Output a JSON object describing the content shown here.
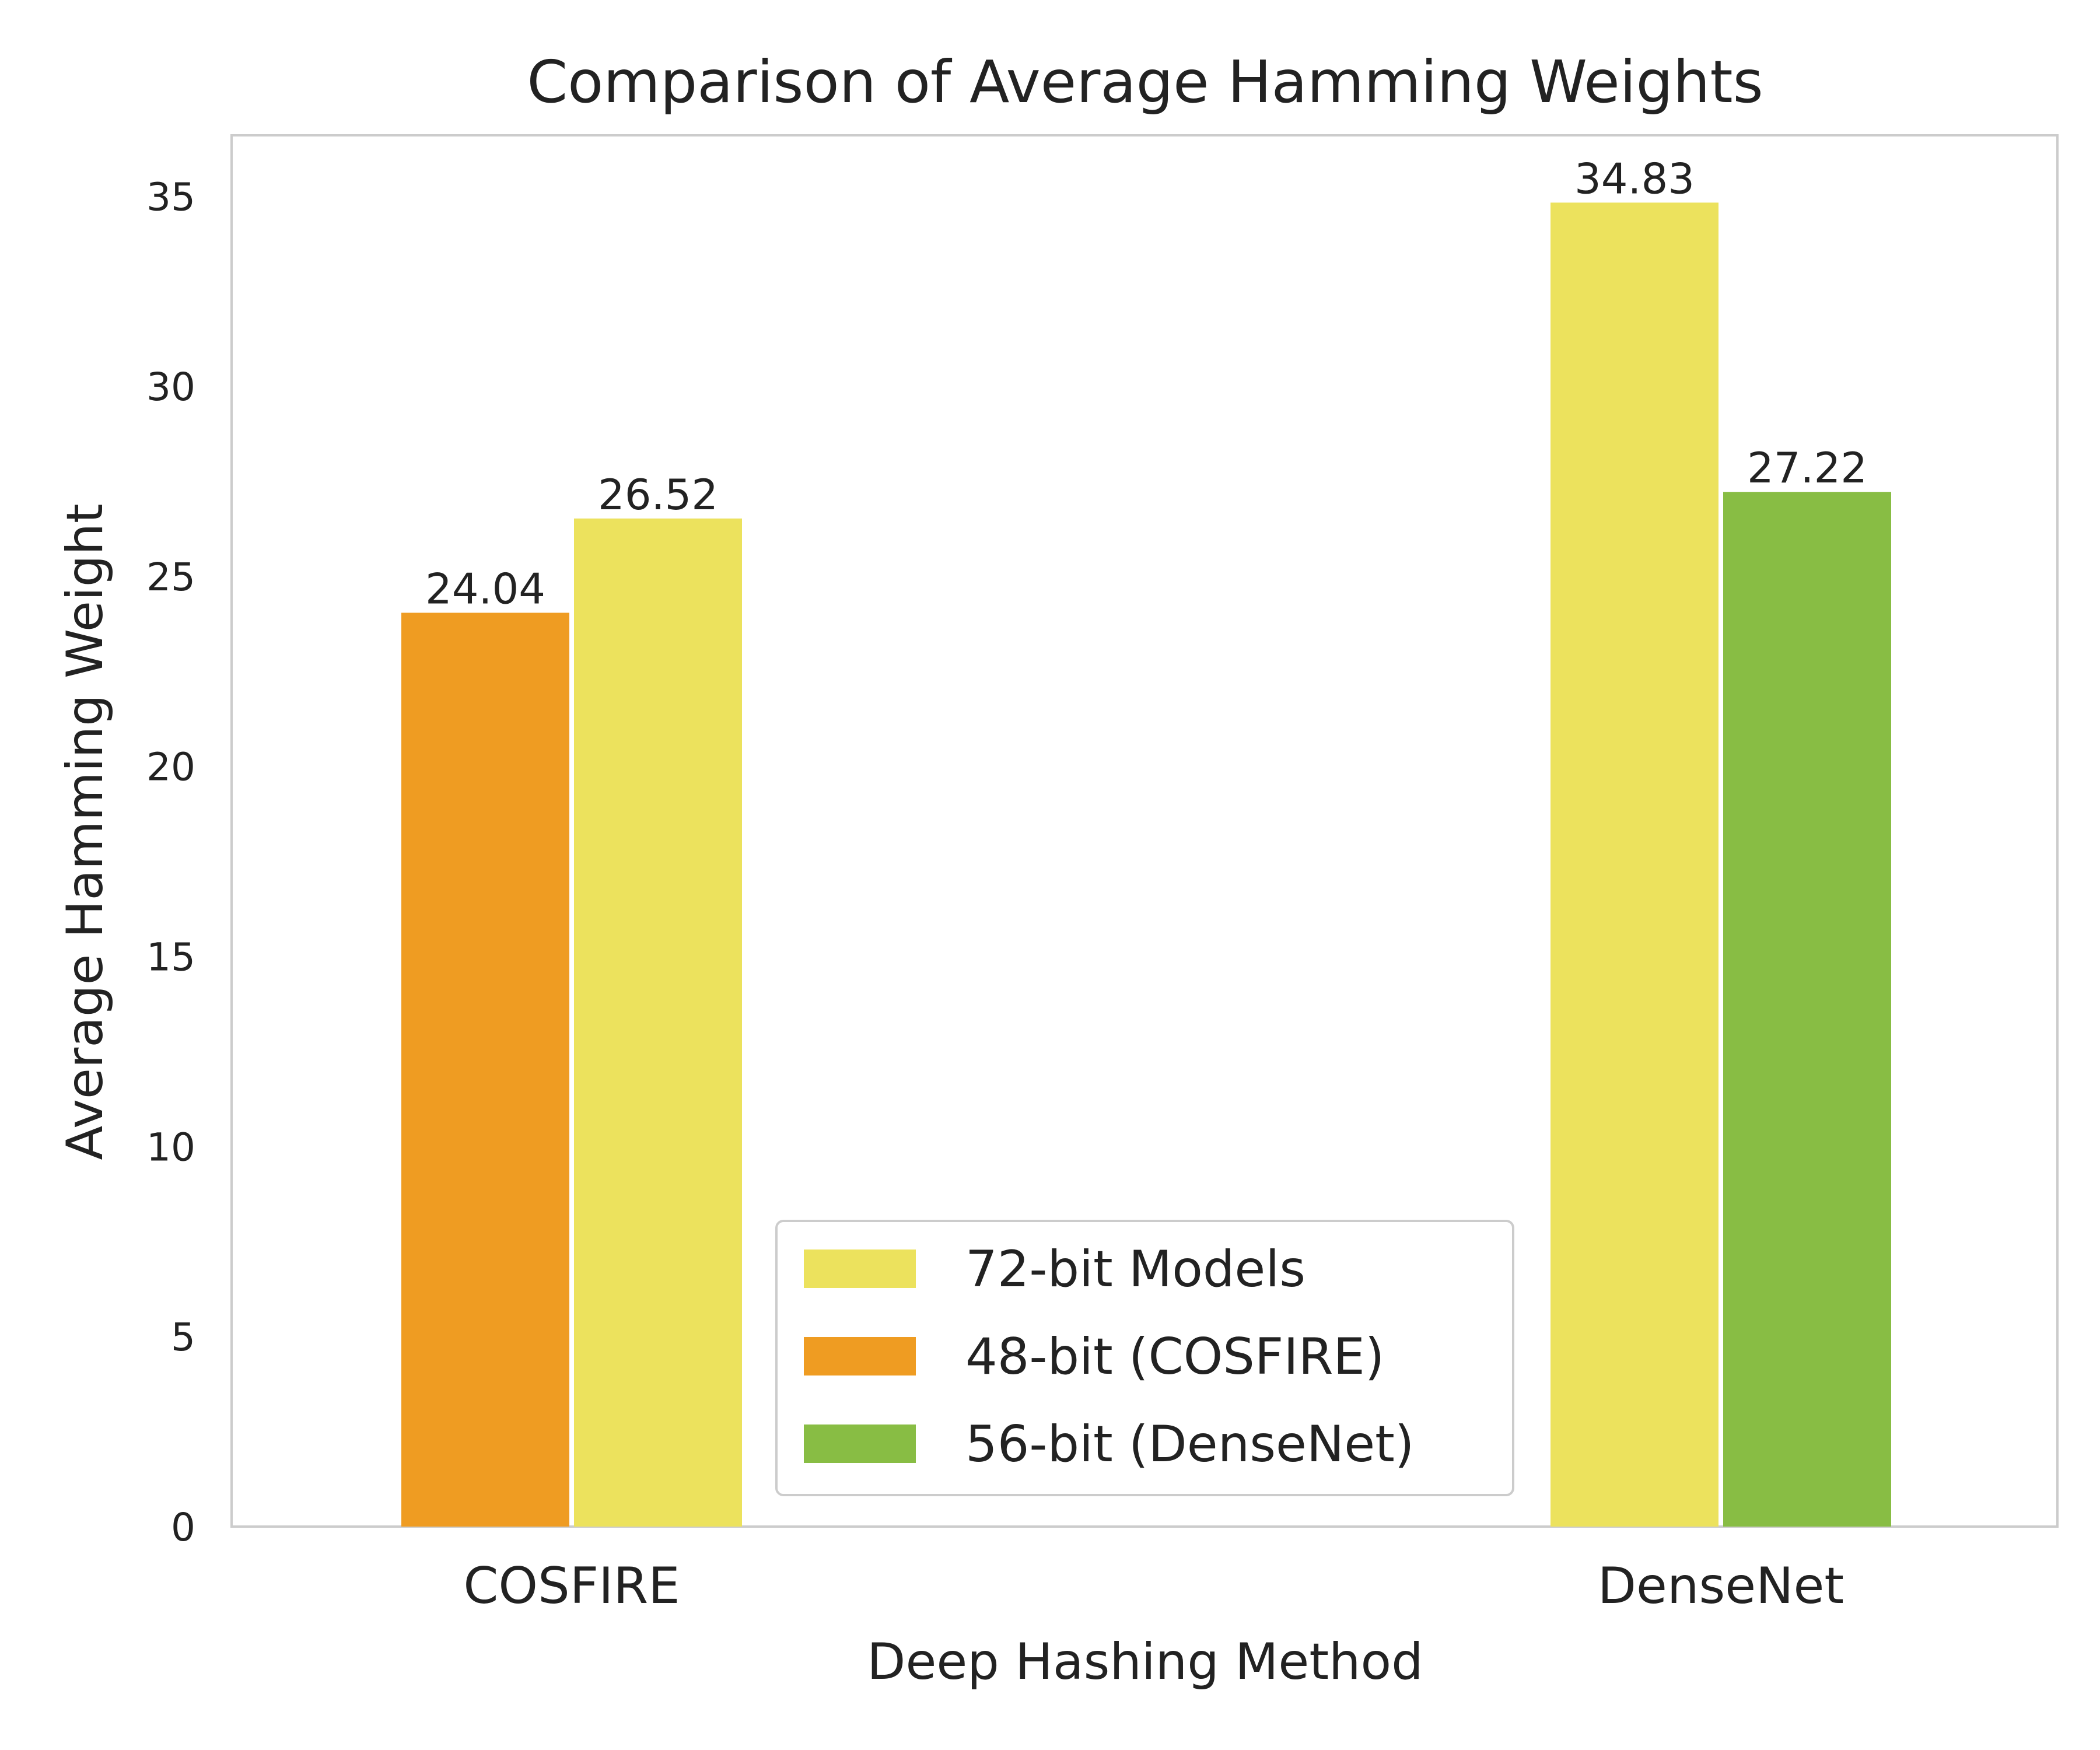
{
  "chart_data": {
    "type": "bar",
    "title": "Comparison of Average Hamming Weights",
    "xlabel": "Deep Hashing Method",
    "ylabel": "Average Hamming Weight",
    "ylim": [
      0,
      36.6
    ],
    "yticks": [
      0,
      5,
      10,
      15,
      20,
      25,
      30,
      35
    ],
    "grid": false,
    "legend_position": "lower-center",
    "categories": [
      "COSFIRE",
      "DenseNet"
    ],
    "legend": [
      {
        "label": "72-bit Models",
        "color": "#ece25d"
      },
      {
        "label": "48-bit (COSFIRE)",
        "color": "#ef9c22"
      },
      {
        "label": "56-bit (DenseNet)",
        "color": "#88bd44"
      }
    ],
    "bars": [
      {
        "category": "COSFIRE",
        "series": "48-bit (COSFIRE)",
        "value": 24.04,
        "label": "24.04",
        "color": "#ef9c22"
      },
      {
        "category": "COSFIRE",
        "series": "72-bit Models",
        "value": 26.52,
        "label": "26.52",
        "color": "#ece25d"
      },
      {
        "category": "DenseNet",
        "series": "72-bit Models",
        "value": 34.83,
        "label": "34.83",
        "color": "#ece25d"
      },
      {
        "category": "DenseNet",
        "series": "56-bit (DenseNet)",
        "value": 27.22,
        "label": "27.22",
        "color": "#88bd44"
      }
    ]
  }
}
